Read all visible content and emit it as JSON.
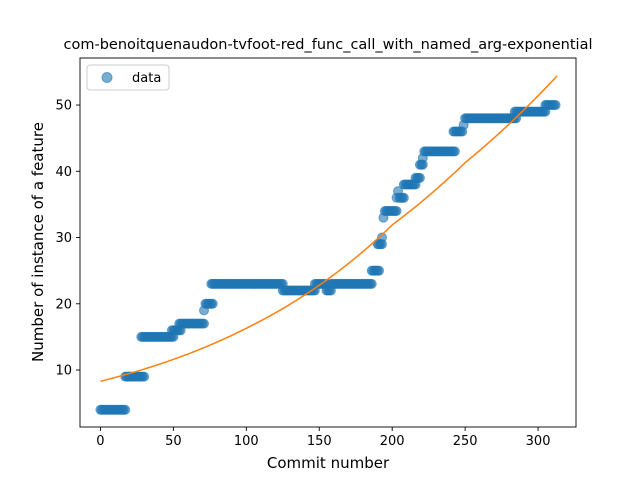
{
  "chart_data": {
    "type": "scatter",
    "title": "com-benoitquenaudon-tvfoot-red_func_call_with_named_arg-exponential",
    "xlabel": "Commit number",
    "ylabel": "Number of instance of a feature",
    "xlim": [
      -14,
      326
    ],
    "ylim": [
      1.4,
      57.1
    ],
    "xticks": [
      0,
      50,
      100,
      150,
      200,
      250,
      300
    ],
    "yticks": [
      10,
      20,
      30,
      40,
      50
    ],
    "grid": false,
    "legend": {
      "position": "top-left",
      "entries": [
        "data"
      ]
    },
    "colors": {
      "data": "#1f77b4",
      "fit": "#ff7f0e"
    },
    "series": [
      {
        "name": "data",
        "kind": "scatter",
        "segments": [
          {
            "x_start": 0,
            "x_end": 17,
            "y": 4
          },
          {
            "x_start": 17,
            "x_end": 30,
            "y": 9
          },
          {
            "x_start": 28,
            "x_end": 50,
            "y": 15
          },
          {
            "x_start": 49,
            "x_end": 55,
            "y": 16
          },
          {
            "x_start": 54,
            "x_end": 71,
            "y": 17
          },
          {
            "x_start": 71,
            "x_end": 71,
            "y": 19
          },
          {
            "x_start": 72,
            "x_end": 77,
            "y": 20
          },
          {
            "x_start": 76,
            "x_end": 125,
            "y": 23
          },
          {
            "x_start": 125,
            "x_end": 147,
            "y": 22
          },
          {
            "x_start": 147,
            "x_end": 155,
            "y": 23
          },
          {
            "x_start": 155,
            "x_end": 158,
            "y": 22
          },
          {
            "x_start": 158,
            "x_end": 186,
            "y": 23
          },
          {
            "x_start": 186,
            "x_end": 191,
            "y": 25
          },
          {
            "x_start": 190,
            "x_end": 193,
            "y": 29
          },
          {
            "x_start": 193,
            "x_end": 193,
            "y": 30
          },
          {
            "x_start": 194,
            "x_end": 194,
            "y": 33
          },
          {
            "x_start": 195,
            "x_end": 203,
            "y": 34
          },
          {
            "x_start": 203,
            "x_end": 203,
            "y": 36
          },
          {
            "x_start": 204,
            "x_end": 204,
            "y": 37
          },
          {
            "x_start": 205,
            "x_end": 208,
            "y": 36
          },
          {
            "x_start": 208,
            "x_end": 216,
            "y": 38
          },
          {
            "x_start": 216,
            "x_end": 219,
            "y": 39
          },
          {
            "x_start": 219,
            "x_end": 221,
            "y": 41
          },
          {
            "x_start": 221,
            "x_end": 221,
            "y": 42
          },
          {
            "x_start": 222,
            "x_end": 243,
            "y": 43
          },
          {
            "x_start": 242,
            "x_end": 248,
            "y": 46
          },
          {
            "x_start": 249,
            "x_end": 249,
            "y": 47
          },
          {
            "x_start": 250,
            "x_end": 285,
            "y": 48
          },
          {
            "x_start": 284,
            "x_end": 305,
            "y": 49
          },
          {
            "x_start": 305,
            "x_end": 312,
            "y": 50
          }
        ]
      },
      {
        "name": "",
        "kind": "line",
        "x": [
          0,
          50,
          100,
          150,
          200,
          250,
          313
        ],
        "y": [
          8.3,
          11.6,
          16.3,
          22.8,
          31.9,
          41.3,
          54.4
        ]
      }
    ]
  }
}
